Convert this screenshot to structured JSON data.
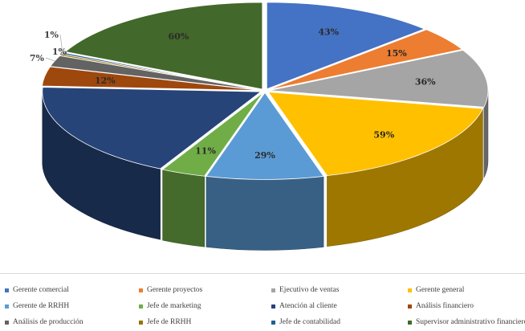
{
  "chart_data": {
    "type": "pie",
    "style": "3d-exploded",
    "legend_position": "bottom",
    "series": [
      {
        "category": "Gerente comercial",
        "label": "43%",
        "value": 43,
        "color": "#4472c4"
      },
      {
        "category": "Gerente proyectos",
        "label": "15%",
        "value": 15,
        "color": "#ed7d31"
      },
      {
        "category": "Ejecutivo de ventas",
        "label": "36%",
        "value": 36,
        "color": "#a5a5a5"
      },
      {
        "category": "Gerente general",
        "label": "59%",
        "value": 59,
        "color": "#ffc000"
      },
      {
        "category": "Gerente de RRHH",
        "label": "29%",
        "value": 29,
        "color": "#5b9bd5"
      },
      {
        "category": "Jefe de marketing",
        "label": "11%",
        "value": 11,
        "color": "#70ad47"
      },
      {
        "category": "Atención al cliente",
        "label": "",
        "value": 61,
        "color": "#264478"
      },
      {
        "category": "Análisis financiero",
        "label": "12%",
        "value": 12,
        "color": "#9e480e"
      },
      {
        "category": "Análisis de producción",
        "label": "7%",
        "value": 7,
        "color": "#636363"
      },
      {
        "category": "Jefe de RRHH",
        "label": "1%",
        "value": 1,
        "color": "#997300"
      },
      {
        "category": "Jefe de contabilidad",
        "label": "1%",
        "value": 1,
        "color": "#255e91"
      },
      {
        "category": "Supervisor administrativo financiero",
        "label": "60%",
        "value": 60,
        "color": "#43682b"
      }
    ]
  }
}
